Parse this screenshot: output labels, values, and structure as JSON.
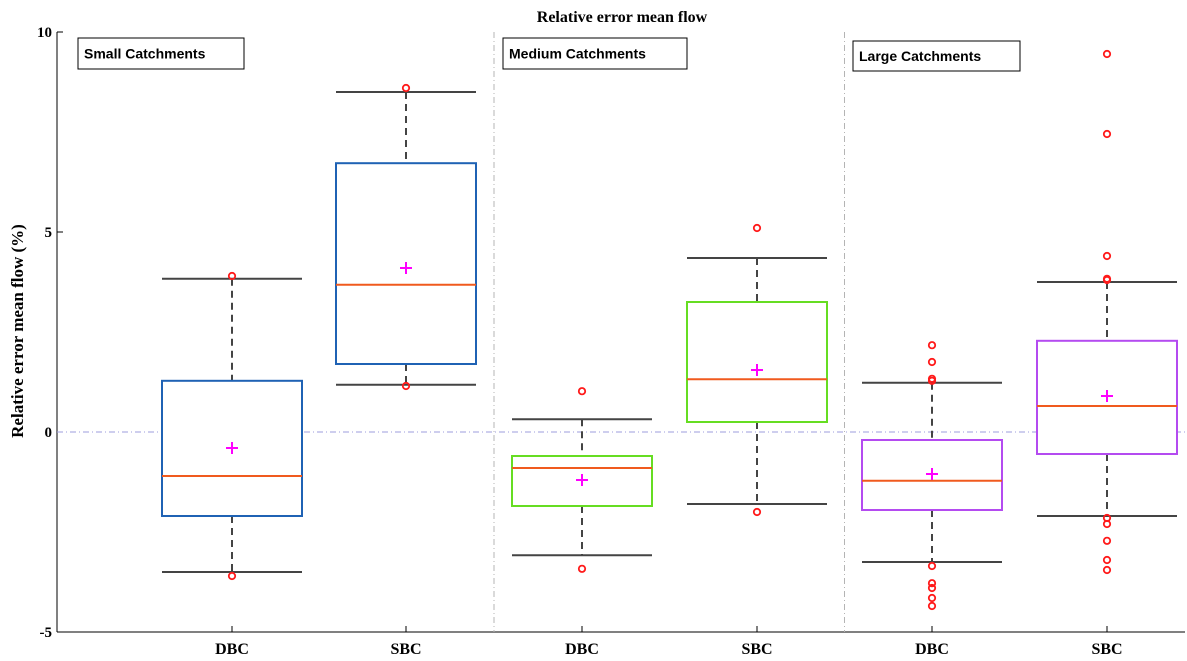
{
  "chart_data": {
    "type": "box",
    "title": "Relative error mean flow",
    "ylabel": "Relative error mean flow (%)",
    "xlabel": "",
    "ylim": [
      -5,
      10
    ],
    "yticks": [
      -5,
      0,
      5,
      10
    ],
    "reference_line": 0,
    "colors": {
      "small": "#1f62b4",
      "medium": "#66dd22",
      "large": "#b44bf0",
      "median": "#f05a1e",
      "mean": "#ff00ff",
      "outlier": "#ff1a1a",
      "whisker": "#444444",
      "reference": "#9c9cdc",
      "separator": "#b4b4b4"
    },
    "panels": [
      {
        "label": "Small Catchments",
        "color_key": "small",
        "boxes": [
          {
            "category": "DBC",
            "q1": -2.1,
            "median": -1.1,
            "q3": 1.28,
            "whisker_low": -3.5,
            "whisker_high": 3.83,
            "mean": -0.4,
            "outliers": [
              3.9,
              -3.6
            ]
          },
          {
            "category": "SBC",
            "q1": 1.7,
            "median": 3.68,
            "q3": 6.72,
            "whisker_low": 1.18,
            "whisker_high": 8.5,
            "mean": 4.1,
            "outliers": [
              8.6,
              1.15
            ]
          }
        ]
      },
      {
        "label": "Medium Catchments",
        "color_key": "medium",
        "boxes": [
          {
            "category": "DBC",
            "q1": -1.85,
            "median": -0.9,
            "q3": -0.6,
            "whisker_low": -3.08,
            "whisker_high": 0.32,
            "mean": -1.2,
            "outliers": [
              1.02,
              -3.42
            ]
          },
          {
            "category": "SBC",
            "q1": 0.25,
            "median": 1.32,
            "q3": 3.25,
            "whisker_low": -1.8,
            "whisker_high": 4.35,
            "mean": 1.55,
            "outliers": [
              5.1,
              -2.0
            ]
          }
        ]
      },
      {
        "label": "Large Catchments",
        "color_key": "large",
        "boxes": [
          {
            "category": "DBC",
            "q1": -1.95,
            "median": -1.22,
            "q3": -0.2,
            "whisker_low": -3.25,
            "whisker_high": 1.23,
            "mean": -1.05,
            "outliers": [
              2.17,
              1.75,
              1.33,
              1.28,
              -3.35,
              -3.78,
              -3.9,
              -4.15,
              -4.35
            ]
          },
          {
            "category": "SBC",
            "q1": -0.55,
            "median": 0.65,
            "q3": 2.28,
            "whisker_low": -2.1,
            "whisker_high": 3.75,
            "mean": 0.9,
            "outliers": [
              9.45,
              7.45,
              4.4,
              3.83,
              3.8,
              -2.15,
              -2.3,
              -2.72,
              -3.2,
              -3.45
            ]
          }
        ]
      }
    ]
  }
}
